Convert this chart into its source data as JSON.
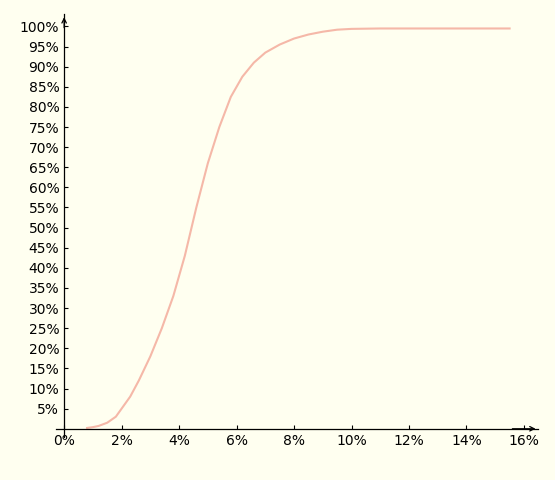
{
  "background_color": "#fffff0",
  "line_color": "#f5b8a8",
  "line_width": 1.5,
  "x_min": 0,
  "x_max": 16,
  "y_min": 0,
  "y_max": 100,
  "x_ticks": [
    0,
    2,
    4,
    6,
    8,
    10,
    12,
    14,
    16
  ],
  "y_ticks": [
    5,
    10,
    15,
    20,
    25,
    30,
    35,
    40,
    45,
    50,
    55,
    60,
    65,
    70,
    75,
    80,
    85,
    90,
    95,
    100
  ],
  "tick_fontsize": 7.5,
  "axis_color": "#000000",
  "sigmoid_x_data": [
    0.8,
    1.0,
    1.2,
    1.5,
    1.8,
    2.0,
    2.3,
    2.6,
    3.0,
    3.4,
    3.8,
    4.2,
    4.6,
    5.0,
    5.4,
    5.8,
    6.2,
    6.6,
    7.0,
    7.5,
    8.0,
    8.5,
    9.0,
    9.5,
    10.0,
    11.0,
    12.0,
    13.0,
    14.0,
    15.0,
    15.5
  ],
  "sigmoid_y_data": [
    0.2,
    0.4,
    0.7,
    1.5,
    3.0,
    5.0,
    8.0,
    12.0,
    18.0,
    25.0,
    33.0,
    43.0,
    55.0,
    66.0,
    75.0,
    82.5,
    87.5,
    91.0,
    93.5,
    95.5,
    97.0,
    98.0,
    98.7,
    99.2,
    99.4,
    99.5,
    99.5,
    99.5,
    99.5,
    99.5,
    99.5
  ]
}
